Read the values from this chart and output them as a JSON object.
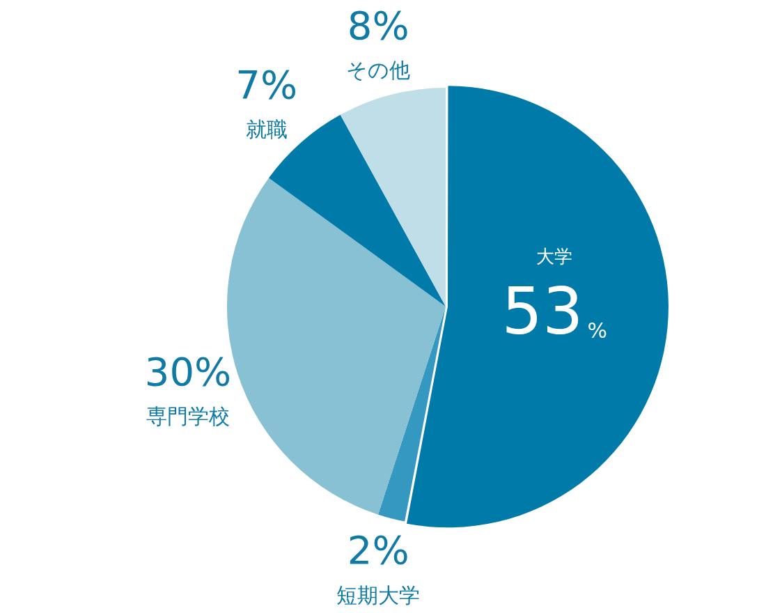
{
  "chart_data": {
    "type": "pie",
    "categories": [
      "大学",
      "短期大学",
      "専門学校",
      "就職",
      "その他"
    ],
    "values": [
      53,
      2,
      30,
      7,
      8
    ],
    "colors": [
      "#007aa9",
      "#3598c0",
      "#88c0d4",
      "#007aa9",
      "#c0dee8"
    ],
    "value_labels": [
      "53%",
      "2%",
      "30%",
      "7%",
      "8%"
    ],
    "legend": false
  }
}
